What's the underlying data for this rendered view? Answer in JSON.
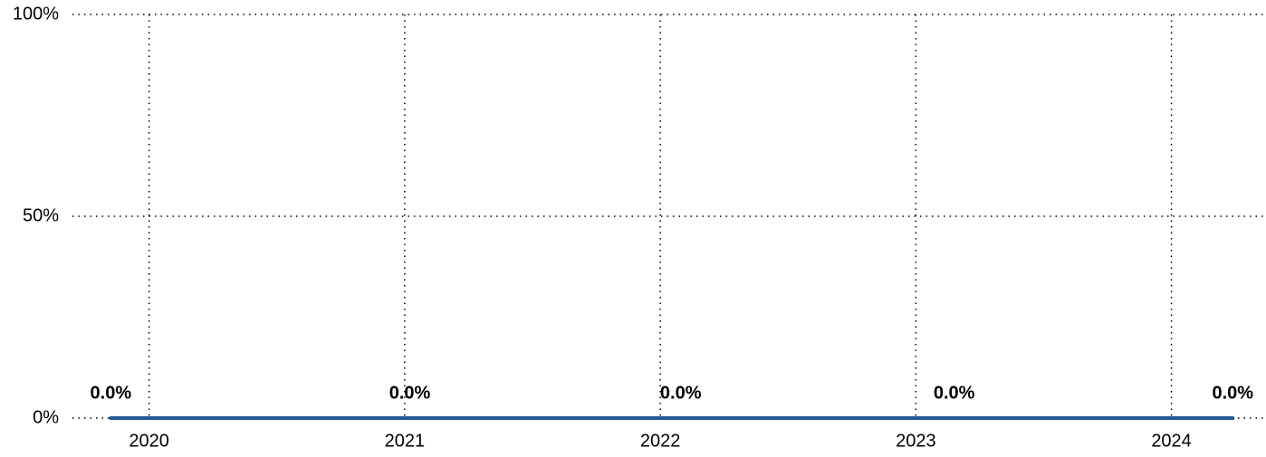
{
  "chart_data": {
    "type": "line",
    "x": [
      2019.85,
      2021.02,
      2022.08,
      2023.15,
      2024.24
    ],
    "series": [
      {
        "values": [
          0,
          0,
          0,
          0,
          0
        ],
        "value_labels": [
          "0.0%",
          "0.0%",
          "0.0%",
          "0.0%",
          "0.0%"
        ],
        "color": "#1f5a96"
      }
    ],
    "xlim": [
      2019.7,
      2024.37
    ],
    "xticks": [
      2020,
      2021,
      2022,
      2023,
      2024
    ],
    "ylim": [
      0,
      100
    ],
    "yticks": [
      {
        "value": 0,
        "label": "0%"
      },
      {
        "value": 50,
        "label": "50%"
      },
      {
        "value": 100,
        "label": "100%"
      }
    ],
    "grid": true
  }
}
